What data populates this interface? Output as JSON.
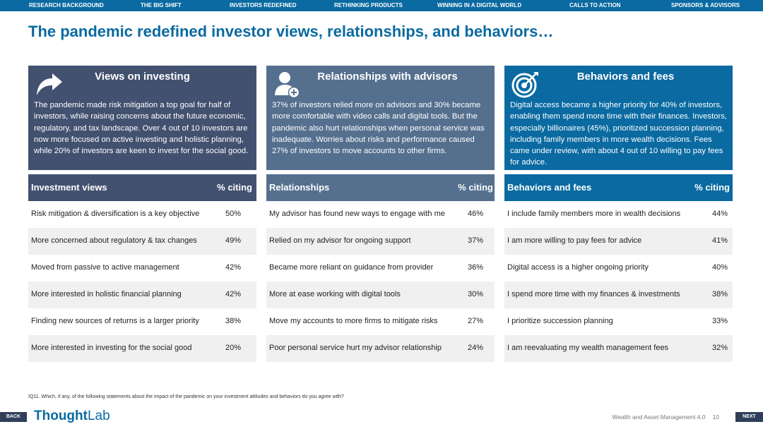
{
  "nav": [
    "RESEARCH BACKGROUND",
    "THE BIG SHIFT",
    "INVESTORS REDEFINED",
    "RETHINKING PRODUCTS",
    "WINNING IN A DIGITAL WORLD",
    "CALLS TO ACTION",
    "SPONSORS & ADVISORS"
  ],
  "title": "The pandemic redefined investor views, relationships, and behaviors…",
  "colors": {
    "nav": "#0a6aa1",
    "card1": "#435170",
    "card2": "#55708f",
    "card3": "#0a6aa1",
    "title": "#0a6aa1"
  },
  "cards": [
    {
      "icon": "arrow-turn-icon",
      "title": "Views on investing",
      "body": "The pandemic made risk mitigation a top goal for half of investors, while raising concerns about the future economic, regulatory, and tax landscape. Over 4 out of 10 investors are now more focused on active investing and holistic  planning, while 20% of investors are keen to invest for the social good."
    },
    {
      "icon": "person-add-icon",
      "title": "Relationships with advisors",
      "body": "37% of investors relied more on advisors and 30% became more comfortable with video calls and digital tools. But the pandemic also hurt relationships when personal service was inadequate. Worries about risks and performance caused 27% of investors to move accounts to other firms."
    },
    {
      "icon": "target-icon",
      "title": "Behaviors and fees",
      "body": "Digital access became a higher priority for 40% of investors, enabling them spend more time with their finances. Investors, especially billionaires (45%), prioritized succession planning, including family members in more wealth decisions. Fees came under review, with about 4 out of 10 willing to pay fees for advice."
    }
  ],
  "tables": [
    {
      "header": "Investment views",
      "pct_header": "% citing",
      "rows": [
        {
          "label": "Risk mitigation & diversification is a key objective",
          "value": "50%"
        },
        {
          "label": "More concerned about regulatory & tax changes",
          "value": "49%"
        },
        {
          "label": "Moved from passive to active management",
          "value": "42%"
        },
        {
          "label": "More interested in holistic financial planning",
          "value": "42%"
        },
        {
          "label": "Finding new sources of returns is a larger priority",
          "value": "38%"
        },
        {
          "label": "More interested in investing for the social good",
          "value": "20%"
        }
      ]
    },
    {
      "header": "Relationships",
      "pct_header": "% citing",
      "rows": [
        {
          "label": "My advisor has found new ways to engage with me",
          "value": "46%"
        },
        {
          "label": "Relied on my advisor for ongoing support",
          "value": "37%"
        },
        {
          "label": "Became more reliant on guidance from provider",
          "value": "36%"
        },
        {
          "label": "More at ease working with digital tools",
          "value": "30%"
        },
        {
          "label": "Move my accounts to more firms to mitigate risks",
          "value": "27%"
        },
        {
          "label": "Poor personal service hurt my advisor relationship",
          "value": "24%"
        }
      ]
    },
    {
      "header": "Behaviors and fees",
      "pct_header": "% citing",
      "rows": [
        {
          "label": "I include family members more in wealth decisions",
          "value": "44%"
        },
        {
          "label": "I am more willing to pay fees for advice",
          "value": "41%"
        },
        {
          "label": "Digital access is a higher ongoing priority",
          "value": "40%"
        },
        {
          "label": "I spend more time with my finances & investments",
          "value": "38%"
        },
        {
          "label": "I prioritize succession planning",
          "value": "33%"
        },
        {
          "label": "I am reevaluating my wealth management fees",
          "value": "32%"
        }
      ]
    }
  ],
  "footnote": "IQ11. Which, if any, of the following statements about the impact of the pandemic on your investment attitudes and behaviors do you agree with?",
  "footer": {
    "back": "BACK",
    "next": "NEXT",
    "logo_a": "Thought",
    "logo_b": "Lab",
    "report": "Wealth and Asset Management 4.0",
    "page": "10"
  }
}
